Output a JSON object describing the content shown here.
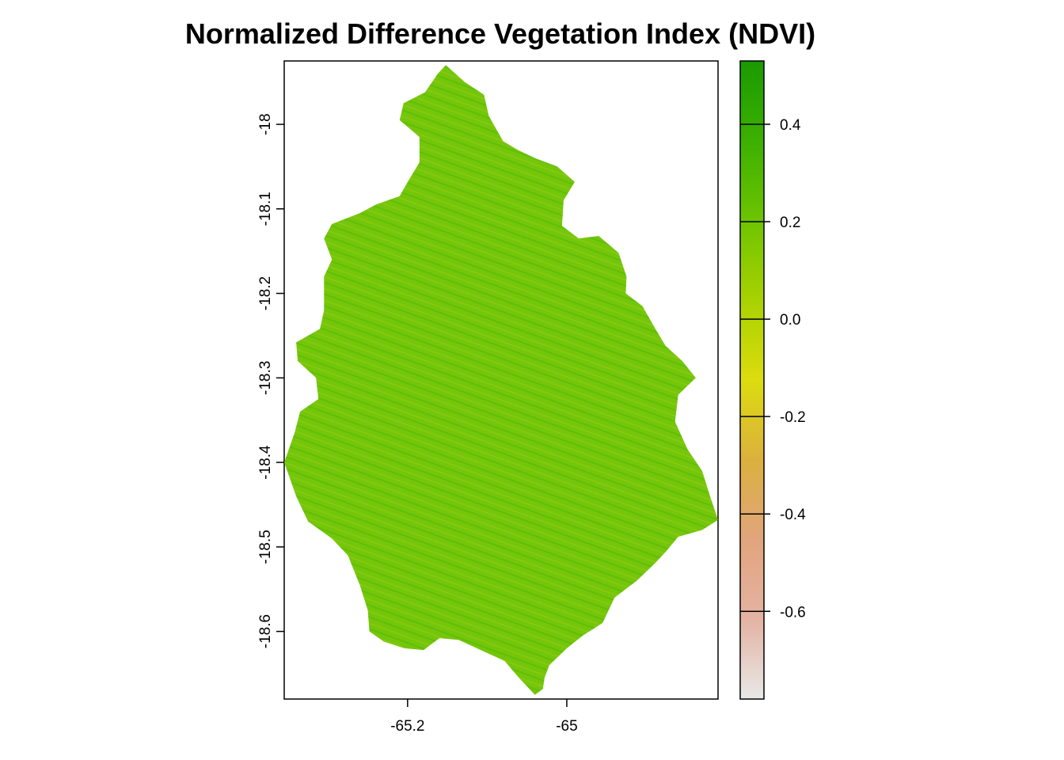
{
  "title": "Normalized Difference Vegetation Index (NDVI)",
  "x_axis": {
    "ticks": [
      {
        "value": -65.2,
        "label": "-65.2"
      },
      {
        "value": -65.0,
        "label": "-65"
      }
    ],
    "range": [
      -65.355,
      -64.81
    ]
  },
  "y_axis": {
    "ticks": [
      {
        "value": -18.0,
        "label": "-18"
      },
      {
        "value": -18.1,
        "label": "-18.1"
      },
      {
        "value": -18.2,
        "label": "-18.2"
      },
      {
        "value": -18.3,
        "label": "-18.3"
      },
      {
        "value": -18.4,
        "label": "-18.4"
      },
      {
        "value": -18.5,
        "label": "-18.5"
      },
      {
        "value": -18.6,
        "label": "-18.6"
      }
    ],
    "range": [
      -18.68,
      -17.925
    ]
  },
  "legend": {
    "range": [
      -0.78,
      0.53
    ],
    "ticks": [
      {
        "value": 0.4,
        "label": "0.4"
      },
      {
        "value": 0.2,
        "label": "0.2"
      },
      {
        "value": 0.0,
        "label": "0.0"
      },
      {
        "value": -0.2,
        "label": "-0.2"
      },
      {
        "value": -0.4,
        "label": "-0.4"
      },
      {
        "value": -0.6,
        "label": "-0.6"
      }
    ],
    "colors": [
      "#e8e8e8",
      "#e4b3a3",
      "#e2a47d",
      "#dcb03e",
      "#dcdc0e",
      "#a8d200",
      "#6ec400",
      "#3cb000",
      "#1a9a00"
    ]
  },
  "region": {
    "fill": "#74c60a",
    "boundary": [
      [
        -65.152,
        -17.93
      ],
      [
        -65.128,
        -17.95
      ],
      [
        -65.104,
        -17.965
      ],
      [
        -65.098,
        -17.99
      ],
      [
        -65.08,
        -18.02
      ],
      [
        -65.062,
        -18.03
      ],
      [
        -65.04,
        -18.04
      ],
      [
        -65.012,
        -18.05
      ],
      [
        -64.99,
        -18.068
      ],
      [
        -65.004,
        -18.09
      ],
      [
        -65.006,
        -18.12
      ],
      [
        -64.985,
        -18.135
      ],
      [
        -64.96,
        -18.132
      ],
      [
        -64.935,
        -18.152
      ],
      [
        -64.925,
        -18.18
      ],
      [
        -64.926,
        -18.2
      ],
      [
        -64.905,
        -18.215
      ],
      [
        -64.89,
        -18.24
      ],
      [
        -64.876,
        -18.262
      ],
      [
        -64.855,
        -18.28
      ],
      [
        -64.838,
        -18.3
      ],
      [
        -64.86,
        -18.32
      ],
      [
        -64.864,
        -18.352
      ],
      [
        -64.848,
        -18.385
      ],
      [
        -64.83,
        -18.41
      ],
      [
        -64.82,
        -18.44
      ],
      [
        -64.81,
        -18.468
      ],
      [
        -64.83,
        -18.48
      ],
      [
        -64.86,
        -18.488
      ],
      [
        -64.875,
        -18.505
      ],
      [
        -64.89,
        -18.52
      ],
      [
        -64.912,
        -18.54
      ],
      [
        -64.94,
        -18.56
      ],
      [
        -64.955,
        -18.59
      ],
      [
        -64.98,
        -18.605
      ],
      [
        -65.0,
        -18.62
      ],
      [
        -65.022,
        -18.64
      ],
      [
        -65.028,
        -18.655
      ],
      [
        -65.03,
        -18.668
      ],
      [
        -65.04,
        -18.675
      ],
      [
        -65.06,
        -18.655
      ],
      [
        -65.078,
        -18.635
      ],
      [
        -65.108,
        -18.622
      ],
      [
        -65.136,
        -18.61
      ],
      [
        -65.16,
        -18.608
      ],
      [
        -65.18,
        -18.622
      ],
      [
        -65.204,
        -18.62
      ],
      [
        -65.23,
        -18.612
      ],
      [
        -65.248,
        -18.6
      ],
      [
        -65.25,
        -18.575
      ],
      [
        -65.26,
        -18.545
      ],
      [
        -65.275,
        -18.51
      ],
      [
        -65.295,
        -18.49
      ],
      [
        -65.325,
        -18.47
      ],
      [
        -65.34,
        -18.44
      ],
      [
        -65.355,
        -18.4
      ],
      [
        -65.342,
        -18.365
      ],
      [
        -65.335,
        -18.34
      ],
      [
        -65.312,
        -18.325
      ],
      [
        -65.315,
        -18.3
      ],
      [
        -65.338,
        -18.28
      ],
      [
        -65.34,
        -18.258
      ],
      [
        -65.31,
        -18.242
      ],
      [
        -65.305,
        -18.22
      ],
      [
        -65.305,
        -18.18
      ],
      [
        -65.295,
        -18.16
      ],
      [
        -65.305,
        -18.135
      ],
      [
        -65.295,
        -18.118
      ],
      [
        -65.26,
        -18.105
      ],
      [
        -65.24,
        -18.095
      ],
      [
        -65.21,
        -18.085
      ],
      [
        -65.198,
        -18.065
      ],
      [
        -65.185,
        -18.045
      ],
      [
        -65.185,
        -18.015
      ],
      [
        -65.21,
        -17.995
      ],
      [
        -65.205,
        -17.975
      ],
      [
        -65.178,
        -17.962
      ],
      [
        -65.162,
        -17.94
      ]
    ]
  }
}
